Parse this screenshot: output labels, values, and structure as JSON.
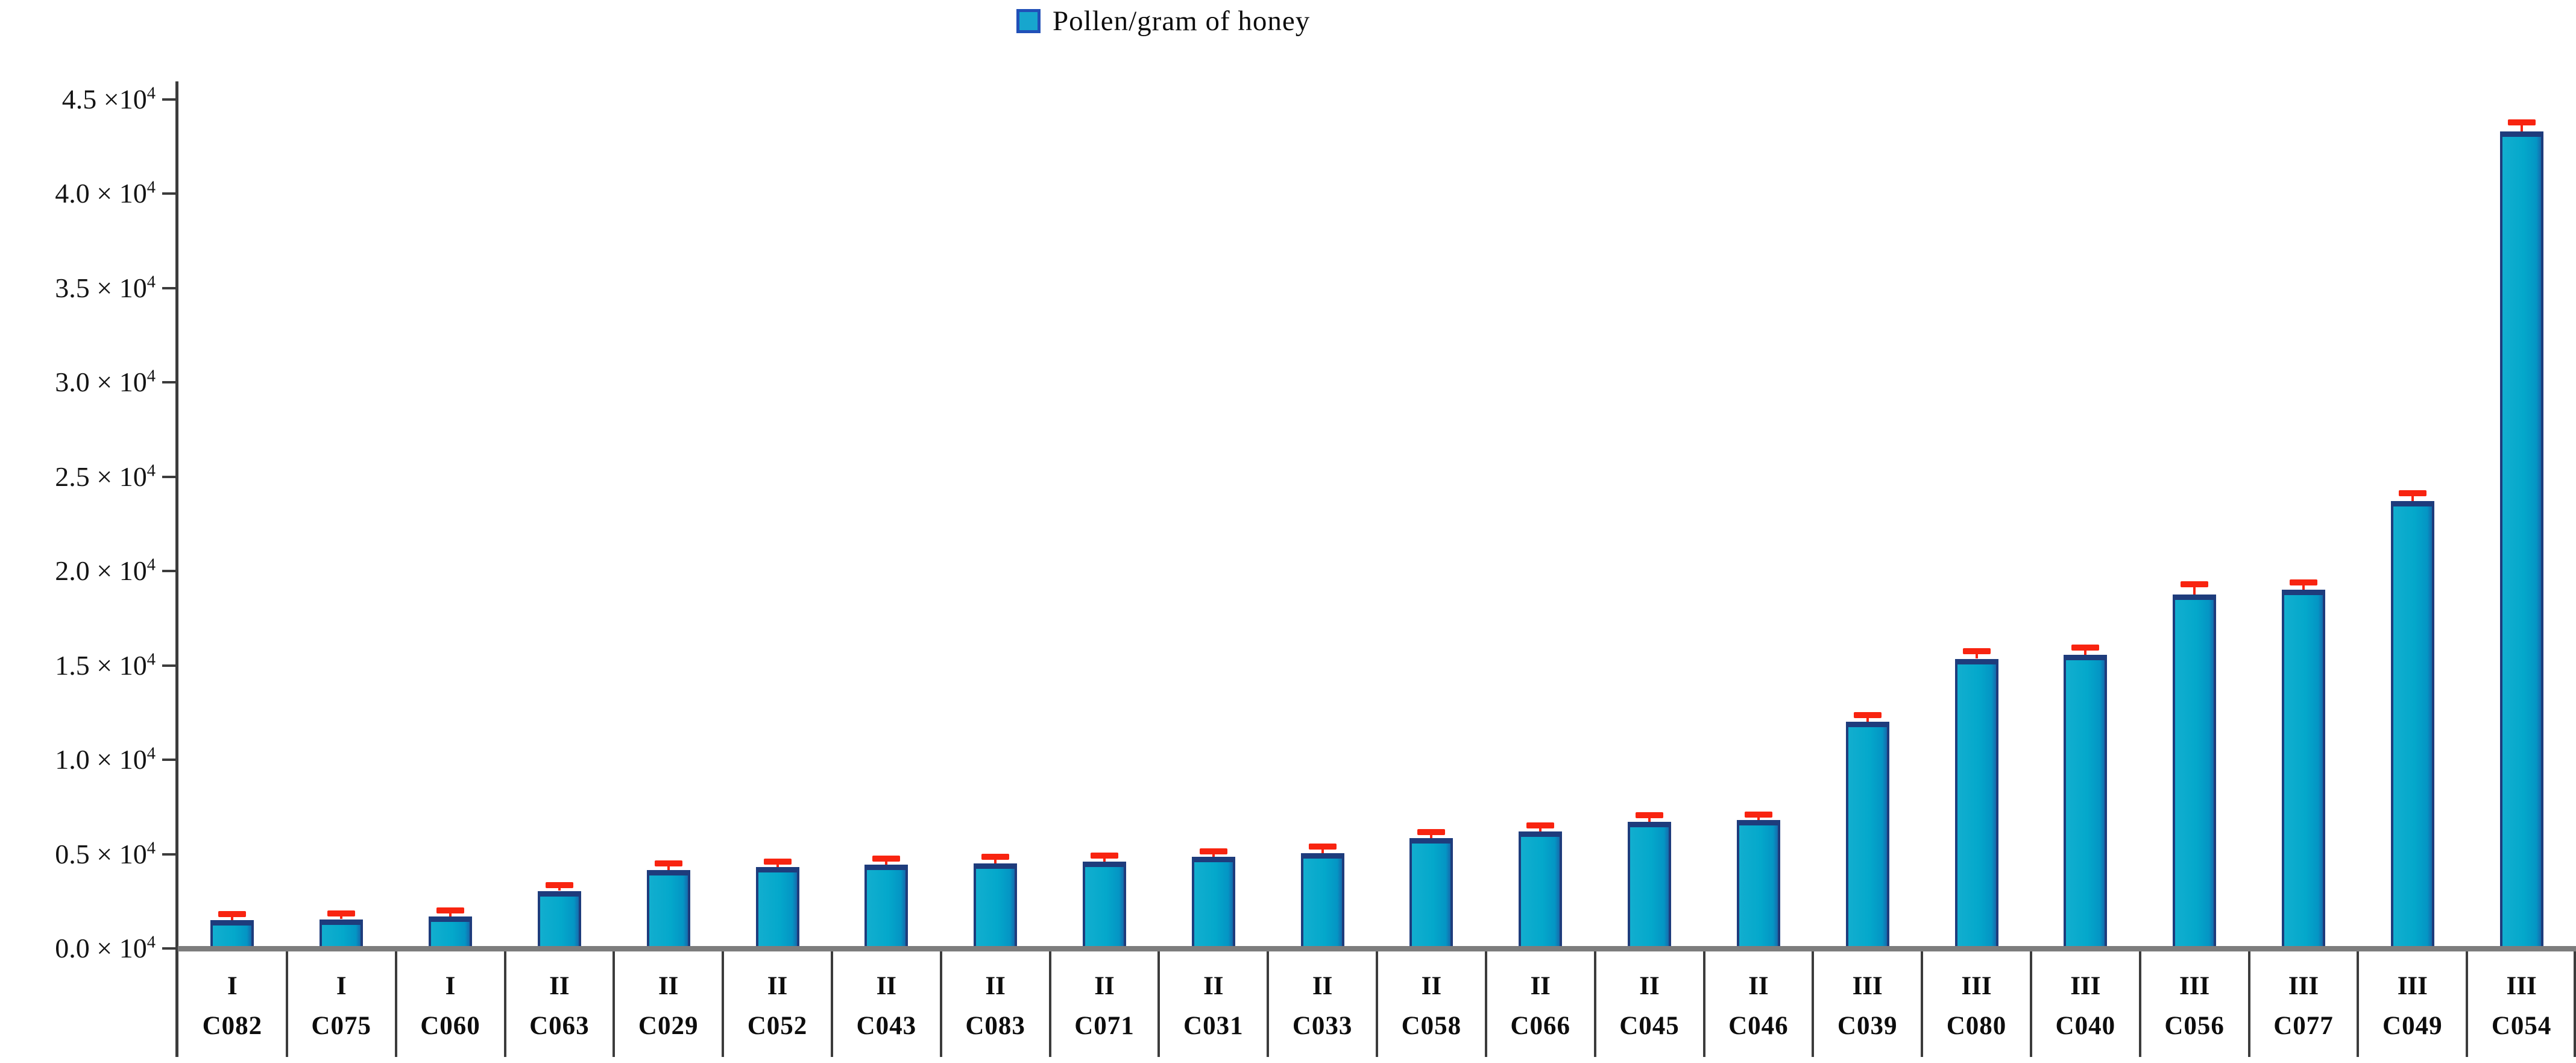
{
  "legend": {
    "label": "Pollen/gram of honey"
  },
  "colors": {
    "bar_fill": "#04a8cb",
    "bar_border": "#1e3c7c",
    "error_bar": "#f82410",
    "axis_line": "#3c3c3c",
    "baseline": "#7d7d7d",
    "legend_swatch_fill": "#17a6ce",
    "legend_swatch_border": "#2150b8",
    "text": "#0d0d0d"
  },
  "chart_data": {
    "type": "bar",
    "title": "Pollen/gram of honey",
    "xlabel": "",
    "ylabel": "Pollen/gram of honey",
    "ylim": [
      0,
      45000
    ],
    "ytick_step": 5000,
    "grid": false,
    "legend_position": "top-center",
    "series": [
      {
        "name": "Pollen/gram of honey"
      }
    ],
    "y_ticks": [
      {
        "value": 0,
        "label": "0.0 × 10",
        "exp": "4"
      },
      {
        "value": 5000,
        "label": "0.5 × 10",
        "exp": "4"
      },
      {
        "value": 10000,
        "label": "1.0 × 10",
        "exp": "4"
      },
      {
        "value": 15000,
        "label": "1.5 × 10",
        "exp": "4"
      },
      {
        "value": 20000,
        "label": "2.0 × 10",
        "exp": "4"
      },
      {
        "value": 25000,
        "label": "2.5 × 10",
        "exp": "4"
      },
      {
        "value": 30000,
        "label": "3.0 × 10",
        "exp": "4"
      },
      {
        "value": 35000,
        "label": "3.5 × 10",
        "exp": "4"
      },
      {
        "value": 40000,
        "label": "4.0 × 10",
        "exp": "4"
      },
      {
        "value": 45000,
        "label": "4.5 ×10",
        "exp": "4"
      }
    ],
    "bars": [
      {
        "group": "I",
        "code": "C082",
        "value": 1500,
        "error": 150
      },
      {
        "group": "I",
        "code": "C075",
        "value": 1550,
        "error": 150
      },
      {
        "group": "I",
        "code": "C060",
        "value": 1700,
        "error": 150
      },
      {
        "group": "II",
        "code": "C063",
        "value": 3050,
        "error": 150
      },
      {
        "group": "II",
        "code": "C029",
        "value": 4150,
        "error": 200
      },
      {
        "group": "II",
        "code": "C052",
        "value": 4300,
        "error": 150
      },
      {
        "group": "II",
        "code": "C043",
        "value": 4450,
        "error": 150
      },
      {
        "group": "II",
        "code": "C083",
        "value": 4500,
        "error": 200
      },
      {
        "group": "II",
        "code": "C071",
        "value": 4600,
        "error": 150
      },
      {
        "group": "II",
        "code": "C031",
        "value": 4850,
        "error": 150
      },
      {
        "group": "II",
        "code": "C033",
        "value": 5050,
        "error": 200
      },
      {
        "group": "II",
        "code": "C058",
        "value": 5850,
        "error": 150
      },
      {
        "group": "II",
        "code": "C066",
        "value": 6200,
        "error": 150
      },
      {
        "group": "II",
        "code": "C045",
        "value": 6700,
        "error": 200
      },
      {
        "group": "II",
        "code": "C046",
        "value": 6800,
        "error": 150
      },
      {
        "group": "III",
        "code": "C039",
        "value": 12000,
        "error": 200
      },
      {
        "group": "III",
        "code": "C080",
        "value": 15350,
        "error": 250
      },
      {
        "group": "III",
        "code": "C040",
        "value": 15550,
        "error": 250
      },
      {
        "group": "III",
        "code": "C056",
        "value": 18750,
        "error": 400
      },
      {
        "group": "III",
        "code": "C077",
        "value": 19000,
        "error": 250
      },
      {
        "group": "III",
        "code": "C049",
        "value": 23700,
        "error": 250
      },
      {
        "group": "III",
        "code": "C054",
        "value": 43300,
        "error": 300
      }
    ]
  }
}
